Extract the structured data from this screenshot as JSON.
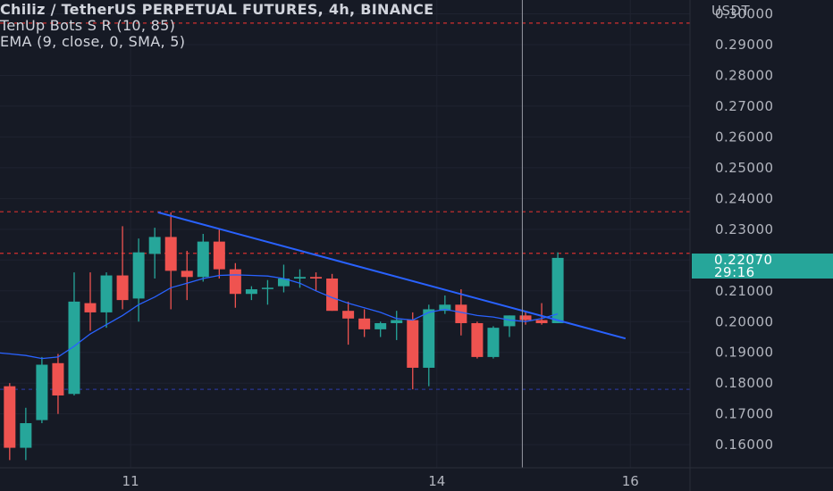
{
  "legend": {
    "title": "Chiliz / TetherUS PERPETUAL FUTURES, 4h, BINANCE",
    "indicator1": "TenUp Bots S R (10, 85)",
    "indicator2": "EMA (9, close, 0, SMA, 5)"
  },
  "price_tag": {
    "price": "0.22070",
    "countdown": "29:16"
  },
  "colors": {
    "background": "#161a25",
    "up": "#26a69a",
    "down": "#ef5350",
    "trendline": "#2962ff",
    "ema": "#2962ff",
    "resistance": "#d32f2f",
    "support": "#283593"
  },
  "chart_data": {
    "type": "candlestick",
    "title": "Chiliz / TetherUS PERPETUAL FUTURES, 4h, BINANCE",
    "y_axis": {
      "unit": "USDT",
      "range": [
        0.1525,
        0.3045
      ],
      "ticks": [
        0.16,
        0.17,
        0.18,
        0.19,
        0.2,
        0.21,
        0.22,
        0.23,
        0.24,
        0.25,
        0.26,
        0.27,
        0.28,
        0.29,
        0.3
      ],
      "tick_labels": [
        "0.16000",
        "0.17000",
        "0.18000",
        "0.19000",
        "0.20000",
        "0.21000",
        "0.22000",
        "0.23000",
        "0.24000",
        "0.25000",
        "0.26000",
        "0.27000",
        "0.28000",
        "0.29000",
        "0.30000"
      ]
    },
    "x_axis": {
      "ticks": [
        {
          "label": "11",
          "index": 7.5
        },
        {
          "label": "14",
          "index": 26.5
        },
        {
          "label": "16",
          "index": 38.5
        }
      ],
      "range": [
        -0.6,
        42.2
      ]
    },
    "candles": [
      {
        "o": 0.179,
        "h": 0.18,
        "l": 0.155,
        "c": 0.159
      },
      {
        "o": 0.159,
        "h": 0.172,
        "l": 0.155,
        "c": 0.167
      },
      {
        "o": 0.168,
        "h": 0.1885,
        "l": 0.167,
        "c": 0.186
      },
      {
        "o": 0.1865,
        "h": 0.1895,
        "l": 0.17,
        "c": 0.176
      },
      {
        "o": 0.1765,
        "h": 0.216,
        "l": 0.176,
        "c": 0.2065
      },
      {
        "o": 0.206,
        "h": 0.216,
        "l": 0.197,
        "c": 0.203
      },
      {
        "o": 0.203,
        "h": 0.216,
        "l": 0.198,
        "c": 0.215
      },
      {
        "o": 0.215,
        "h": 0.231,
        "l": 0.204,
        "c": 0.207
      },
      {
        "o": 0.2075,
        "h": 0.227,
        "l": 0.2,
        "c": 0.2225
      },
      {
        "o": 0.222,
        "h": 0.2305,
        "l": 0.214,
        "c": 0.2275
      },
      {
        "o": 0.2275,
        "h": 0.2355,
        "l": 0.204,
        "c": 0.2165
      },
      {
        "o": 0.2165,
        "h": 0.223,
        "l": 0.207,
        "c": 0.2145
      },
      {
        "o": 0.2145,
        "h": 0.2285,
        "l": 0.213,
        "c": 0.226
      },
      {
        "o": 0.226,
        "h": 0.23,
        "l": 0.214,
        "c": 0.217
      },
      {
        "o": 0.217,
        "h": 0.219,
        "l": 0.2045,
        "c": 0.209
      },
      {
        "o": 0.209,
        "h": 0.2115,
        "l": 0.207,
        "c": 0.2105
      },
      {
        "o": 0.211,
        "h": 0.2135,
        "l": 0.2055,
        "c": 0.211
      },
      {
        "o": 0.2115,
        "h": 0.2185,
        "l": 0.2095,
        "c": 0.214
      },
      {
        "o": 0.214,
        "h": 0.217,
        "l": 0.211,
        "c": 0.2145
      },
      {
        "o": 0.2145,
        "h": 0.216,
        "l": 0.21,
        "c": 0.214
      },
      {
        "o": 0.214,
        "h": 0.2155,
        "l": 0.2035,
        "c": 0.2035
      },
      {
        "o": 0.2035,
        "h": 0.2065,
        "l": 0.1925,
        "c": 0.201
      },
      {
        "o": 0.201,
        "h": 0.204,
        "l": 0.195,
        "c": 0.1975
      },
      {
        "o": 0.1975,
        "h": 0.2,
        "l": 0.195,
        "c": 0.1995
      },
      {
        "o": 0.1995,
        "h": 0.2035,
        "l": 0.194,
        "c": 0.2005
      },
      {
        "o": 0.2005,
        "h": 0.203,
        "l": 0.178,
        "c": 0.185
      },
      {
        "o": 0.185,
        "h": 0.2055,
        "l": 0.179,
        "c": 0.204
      },
      {
        "o": 0.2035,
        "h": 0.2085,
        "l": 0.2025,
        "c": 0.2055
      },
      {
        "o": 0.2055,
        "h": 0.2105,
        "l": 0.1955,
        "c": 0.1995
      },
      {
        "o": 0.1995,
        "h": 0.2,
        "l": 0.188,
        "c": 0.1885
      },
      {
        "o": 0.1885,
        "h": 0.1985,
        "l": 0.188,
        "c": 0.198
      },
      {
        "o": 0.1985,
        "h": 0.202,
        "l": 0.195,
        "c": 0.202
      },
      {
        "o": 0.202,
        "h": 0.203,
        "l": 0.199,
        "c": 0.2005
      },
      {
        "o": 0.2005,
        "h": 0.206,
        "l": 0.199,
        "c": 0.1995
      },
      {
        "o": 0.1995,
        "h": 0.2225,
        "l": 0.1995,
        "c": 0.2207
      }
    ],
    "ema_values": [
      0.199,
      0.1965,
      0.1935,
      0.19,
      0.1895,
      0.189,
      0.188,
      0.1885,
      0.192,
      0.196,
      0.199,
      0.202,
      0.2055,
      0.208,
      0.211,
      0.2125,
      0.214,
      0.215,
      0.2152,
      0.215,
      0.2148,
      0.214,
      0.2125,
      0.21,
      0.2078,
      0.206,
      0.2045,
      0.203,
      0.201,
      0.2005,
      0.203,
      0.204,
      0.203,
      0.202,
      0.2015,
      0.2005,
      0.2,
      0.201,
      0.2025
    ],
    "ema_start_index": -4,
    "trendline": [
      {
        "index": 9.2,
        "price": 0.2355
      },
      {
        "index": 38.2,
        "price": 0.1945
      }
    ],
    "horizontal_levels": [
      {
        "price": 0.297,
        "style": "dashed",
        "color": "#d32f2f"
      },
      {
        "price": 0.2357,
        "style": "dashed",
        "color": "#d32f2f"
      },
      {
        "price": 0.2222,
        "style": "dashed",
        "color": "#d32f2f"
      },
      {
        "price": 0.178,
        "style": "dashed",
        "color": "#283593"
      }
    ],
    "crosshair_index": 31.8,
    "last_price": 0.2207,
    "grid": true,
    "legend_position": "top-left"
  }
}
